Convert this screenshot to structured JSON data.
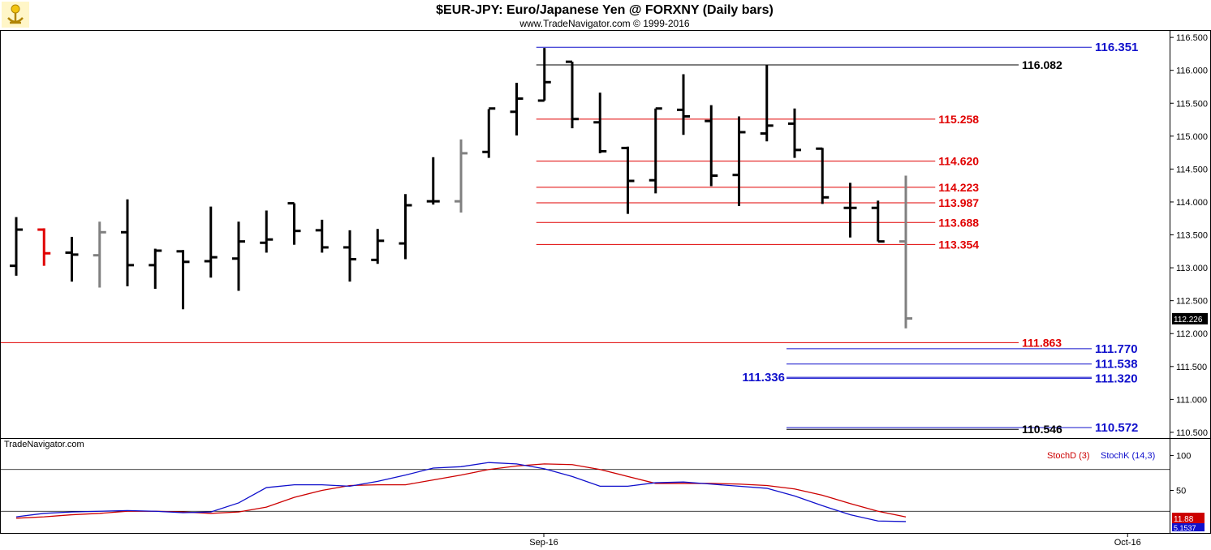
{
  "header": {
    "title": "$EUR-JPY:  Euro/Japanese Yen @ FORXNY  (Daily bars)",
    "subtitle": "www.TradeNavigator.com © 1999-2016"
  },
  "watermark": "TradeNavigator.com",
  "colors": {
    "bar_normal": "#000000",
    "bar_red": "#e00000",
    "bar_gray": "#808080",
    "level_red": "#e00000",
    "level_blue": "#1010cc",
    "level_black": "#000000",
    "stoch_d": "#cc0000",
    "stoch_k": "#1010cc",
    "frame": "#000000"
  },
  "chart_data": [
    {
      "type": "ohlc",
      "ylim": [
        110.45,
        116.6
      ],
      "yticks": [
        "116.500",
        "116.000",
        "115.500",
        "115.000",
        "114.500",
        "114.000",
        "113.500",
        "113.000",
        "112.500",
        "112.000",
        "111.500",
        "111.000",
        "110.500"
      ],
      "x_labels": [
        {
          "label": "Sep-16",
          "index": 20
        },
        {
          "label": "Oct-16",
          "index": 41
        }
      ],
      "last_price": "112.226",
      "bars": [
        {
          "o": 113.03,
          "h": 113.77,
          "l": 112.88,
          "c": 113.58,
          "color": "black"
        },
        {
          "o": 113.58,
          "h": 113.6,
          "l": 113.03,
          "c": 113.22,
          "color": "red"
        },
        {
          "o": 113.23,
          "h": 113.47,
          "l": 112.79,
          "c": 113.2,
          "color": "black"
        },
        {
          "o": 113.19,
          "h": 113.7,
          "l": 112.7,
          "c": 113.54,
          "color": "gray"
        },
        {
          "o": 113.54,
          "h": 114.04,
          "l": 112.72,
          "c": 113.04,
          "color": "black"
        },
        {
          "o": 113.04,
          "h": 113.29,
          "l": 112.68,
          "c": 113.26,
          "color": "black"
        },
        {
          "o": 113.25,
          "h": 113.27,
          "l": 112.37,
          "c": 113.09,
          "color": "black"
        },
        {
          "o": 113.1,
          "h": 113.93,
          "l": 112.85,
          "c": 113.16,
          "color": "black"
        },
        {
          "o": 113.14,
          "h": 113.7,
          "l": 112.65,
          "c": 113.4,
          "color": "black"
        },
        {
          "o": 113.38,
          "h": 113.87,
          "l": 113.23,
          "c": 113.43,
          "color": "black"
        },
        {
          "o": 113.98,
          "h": 113.98,
          "l": 113.35,
          "c": 113.56,
          "color": "black"
        },
        {
          "o": 113.57,
          "h": 113.73,
          "l": 113.23,
          "c": 113.31,
          "color": "black"
        },
        {
          "o": 113.31,
          "h": 113.57,
          "l": 112.79,
          "c": 113.13,
          "color": "black"
        },
        {
          "o": 113.12,
          "h": 113.59,
          "l": 113.06,
          "c": 113.41,
          "color": "black"
        },
        {
          "o": 113.37,
          "h": 114.12,
          "l": 113.13,
          "c": 113.95,
          "color": "black"
        },
        {
          "o": 114.01,
          "h": 114.68,
          "l": 113.96,
          "c": 114.01,
          "color": "black"
        },
        {
          "o": 114.01,
          "h": 114.95,
          "l": 113.84,
          "c": 114.74,
          "color": "gray"
        },
        {
          "o": 114.76,
          "h": 115.41,
          "l": 114.67,
          "c": 115.42,
          "color": "black"
        },
        {
          "o": 115.37,
          "h": 115.81,
          "l": 115.01,
          "c": 115.57,
          "color": "black"
        },
        {
          "o": 115.54,
          "h": 116.34,
          "l": 115.54,
          "c": 115.82,
          "color": "black"
        },
        {
          "o": 116.13,
          "h": 116.13,
          "l": 115.12,
          "c": 115.26,
          "color": "black"
        },
        {
          "o": 115.21,
          "h": 115.66,
          "l": 114.74,
          "c": 114.77,
          "color": "black"
        },
        {
          "o": 114.82,
          "h": 114.84,
          "l": 113.82,
          "c": 114.32,
          "color": "black"
        },
        {
          "o": 114.33,
          "h": 115.42,
          "l": 114.13,
          "c": 115.42,
          "color": "black"
        },
        {
          "o": 115.4,
          "h": 115.94,
          "l": 115.02,
          "c": 115.3,
          "color": "black"
        },
        {
          "o": 115.23,
          "h": 115.47,
          "l": 114.24,
          "c": 114.4,
          "color": "black"
        },
        {
          "o": 114.41,
          "h": 115.3,
          "l": 113.94,
          "c": 115.06,
          "color": "black"
        },
        {
          "o": 115.04,
          "h": 116.08,
          "l": 114.92,
          "c": 115.16,
          "color": "black"
        },
        {
          "o": 115.19,
          "h": 115.42,
          "l": 114.67,
          "c": 114.79,
          "color": "black"
        },
        {
          "o": 114.81,
          "h": 114.82,
          "l": 113.97,
          "c": 114.07,
          "color": "black"
        },
        {
          "o": 113.91,
          "h": 114.29,
          "l": 113.46,
          "c": 113.91,
          "color": "black"
        },
        {
          "o": 113.91,
          "h": 114.02,
          "l": 113.4,
          "c": 113.4,
          "color": "black"
        },
        {
          "o": 113.4,
          "h": 114.4,
          "l": 112.08,
          "c": 112.23,
          "color": "gray"
        }
      ],
      "levels": [
        {
          "value": 116.351,
          "label": "116.351",
          "color": "blue",
          "from": 19,
          "to": "right"
        },
        {
          "value": 116.082,
          "label": "116.082",
          "color": "black",
          "from": 19,
          "to": 36
        },
        {
          "value": 115.258,
          "label": "115.258",
          "color": "red",
          "from": 19,
          "to": 33
        },
        {
          "value": 114.62,
          "label": "114.620",
          "color": "red",
          "from": 19,
          "to": 33
        },
        {
          "value": 114.223,
          "label": "114.223",
          "color": "red",
          "from": 19,
          "to": 33
        },
        {
          "value": 113.987,
          "label": "113.987",
          "color": "red",
          "from": 19,
          "to": 33
        },
        {
          "value": 113.688,
          "label": "113.688",
          "color": "red",
          "from": 19,
          "to": 33
        },
        {
          "value": 113.354,
          "label": "113.354",
          "color": "red",
          "from": 19,
          "to": 33
        },
        {
          "value": 111.863,
          "label": "111.863",
          "color": "red",
          "from": "left",
          "to": 36
        },
        {
          "value": 111.77,
          "label": "111.770",
          "color": "blue",
          "from": 28,
          "to": "right"
        },
        {
          "value": 111.538,
          "label": "111.538",
          "color": "blue",
          "from": 28,
          "to": "right"
        },
        {
          "value": 111.336,
          "label": "111.336",
          "color": "blue",
          "from": 28,
          "to": "right",
          "label_side": "left"
        },
        {
          "value": 111.32,
          "label": "111.320",
          "color": "blue",
          "from": 28,
          "to": "right"
        },
        {
          "value": 110.572,
          "label": "110.572",
          "color": "blue",
          "from": 28,
          "to": "right"
        },
        {
          "value": 110.546,
          "label": "110.546",
          "color": "black",
          "from": 28,
          "to": 36
        }
      ]
    },
    {
      "type": "line",
      "ylim": [
        -10,
        110
      ],
      "yticks": [
        "100",
        "50"
      ],
      "ref_lines": [
        80,
        20
      ],
      "legend": [
        "StochD (3)",
        "StochK (14,3)"
      ],
      "legend_position": "top-right",
      "last_values": {
        "d": "11.88",
        "k": "5.1537"
      },
      "series": [
        {
          "name": "StochD (3)",
          "color": "d",
          "values": [
            10,
            12,
            15,
            17,
            20,
            20,
            19,
            17,
            19,
            26,
            40,
            50,
            57,
            58,
            58,
            65,
            72,
            80,
            85,
            88,
            87,
            80,
            70,
            60,
            60,
            60,
            59,
            57,
            52,
            43,
            31,
            20,
            11.9
          ]
        },
        {
          "name": "StochK (14,3)",
          "color": "k",
          "values": [
            12,
            17,
            19,
            20,
            21,
            20,
            18,
            19,
            32,
            54,
            58,
            58,
            56,
            63,
            72,
            82,
            84,
            90,
            88,
            81,
            70,
            56,
            56,
            61,
            62,
            59,
            56,
            53,
            42,
            28,
            15,
            6,
            5.2
          ]
        }
      ]
    }
  ]
}
